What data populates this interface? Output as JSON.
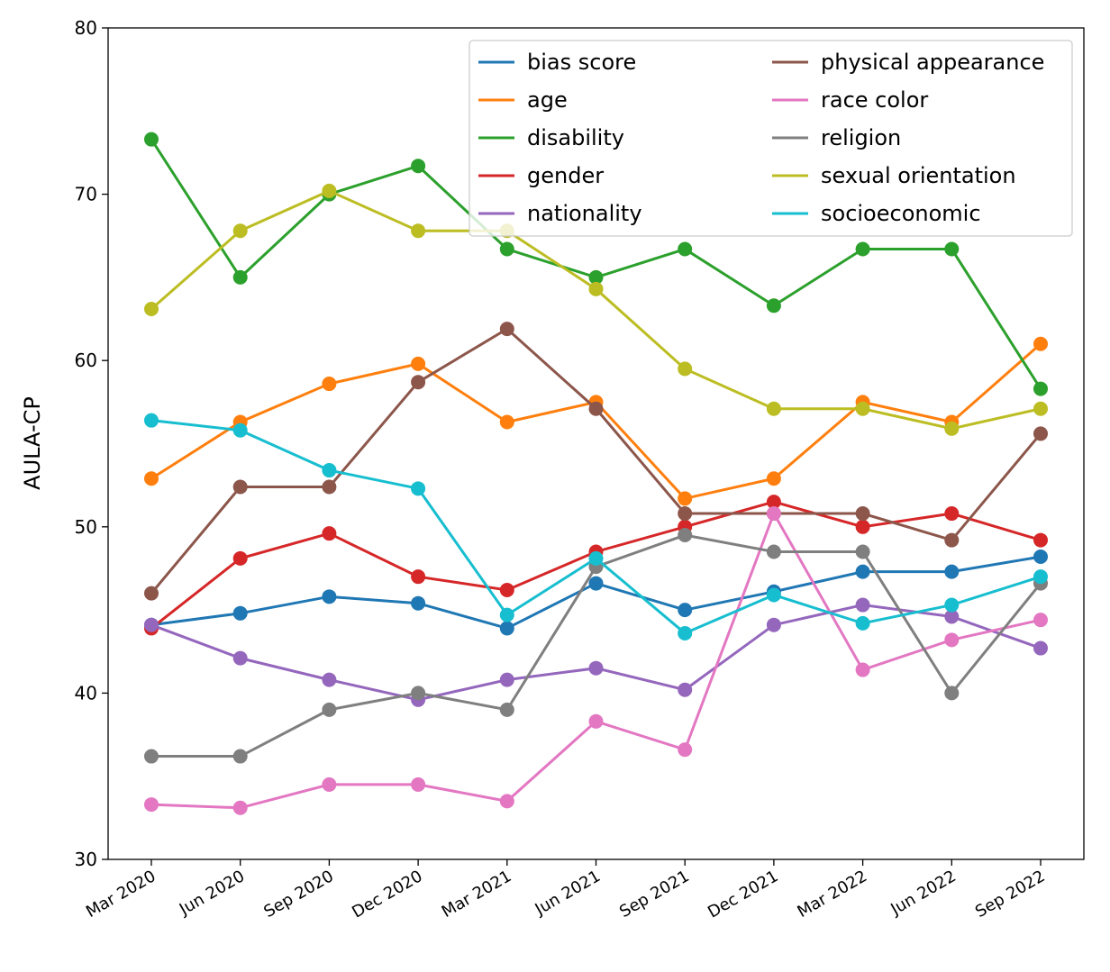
{
  "chart_data": {
    "type": "line",
    "title": "",
    "xlabel": "",
    "ylabel": "AULA-CP",
    "ylim": [
      30,
      80
    ],
    "yticks": [
      30,
      40,
      50,
      60,
      70,
      80
    ],
    "grid": false,
    "legend_placement": "top-right",
    "legend_columns": 2,
    "categories": [
      "Mar 2020",
      "Jun 2020",
      "Sep 2020",
      "Dec 2020",
      "Mar 2021",
      "Jun 2021",
      "Sep 2021",
      "Dec 2021",
      "Mar 2022",
      "Jun 2022",
      "Sep 2022"
    ],
    "series": [
      {
        "name": "bias score",
        "color": "#1f77b4",
        "values": [
          44.1,
          44.8,
          45.8,
          45.4,
          43.9,
          46.6,
          45.0,
          46.1,
          47.3,
          47.3,
          48.2
        ]
      },
      {
        "name": "age",
        "color": "#ff7f0e",
        "values": [
          52.9,
          56.3,
          58.6,
          59.8,
          56.3,
          57.5,
          51.7,
          52.9,
          57.5,
          56.3,
          61.0
        ]
      },
      {
        "name": "disability",
        "color": "#2ca02c",
        "values": [
          73.3,
          65.0,
          70.0,
          71.7,
          66.7,
          65.0,
          66.7,
          63.3,
          66.7,
          66.7,
          58.3
        ]
      },
      {
        "name": "gender",
        "color": "#d62728",
        "values": [
          43.9,
          48.1,
          49.6,
          47.0,
          46.2,
          48.5,
          50.0,
          51.5,
          50.0,
          50.8,
          49.2
        ]
      },
      {
        "name": "nationality",
        "color": "#9467bd",
        "values": [
          44.1,
          42.1,
          40.8,
          39.6,
          40.8,
          41.5,
          40.2,
          44.1,
          45.3,
          44.6,
          42.7
        ]
      },
      {
        "name": "physical appearance",
        "color": "#8c564b",
        "values": [
          46.0,
          52.4,
          52.4,
          58.7,
          61.9,
          57.1,
          50.8,
          50.8,
          50.8,
          49.2,
          55.6
        ]
      },
      {
        "name": "race color",
        "color": "#e377c2",
        "values": [
          33.3,
          33.1,
          34.5,
          34.5,
          33.5,
          38.3,
          36.6,
          50.8,
          41.4,
          43.2,
          44.4
        ]
      },
      {
        "name": "religion",
        "color": "#7f7f7f",
        "values": [
          36.2,
          36.2,
          39.0,
          40.0,
          39.0,
          47.6,
          49.5,
          48.5,
          48.5,
          40.0,
          46.6
        ]
      },
      {
        "name": "sexual orientation",
        "color": "#bcbd22",
        "values": [
          63.1,
          67.8,
          70.2,
          67.8,
          67.8,
          64.3,
          59.5,
          57.1,
          57.1,
          55.9,
          57.1
        ]
      },
      {
        "name": "socioeconomic",
        "color": "#17becf",
        "values": [
          56.4,
          55.8,
          53.4,
          52.3,
          44.7,
          48.1,
          43.6,
          45.9,
          44.2,
          45.3,
          47.0
        ]
      }
    ]
  }
}
